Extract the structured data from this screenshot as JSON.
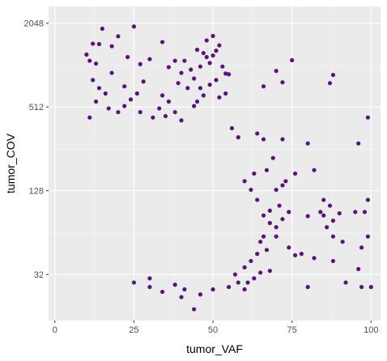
{
  "chart_data": {
    "type": "scatter",
    "xlabel": "tumor_VAF",
    "ylabel": "tumor_COV",
    "xlim": [
      -2,
      103
    ],
    "ylim_log2": [
      3.9,
      11.4
    ],
    "y_scale": "log2",
    "grid": true,
    "legend": "none",
    "xticks": [
      0,
      25,
      50,
      75,
      100
    ],
    "xtick_labels": [
      "0",
      "25",
      "50",
      "75",
      "100"
    ],
    "yticks": [
      32,
      128,
      512,
      2048
    ],
    "ytick_labels": [
      "32",
      "128",
      "512",
      "2048"
    ],
    "colors": {
      "panel": "#ebebeb",
      "grid_major": "#ffffff",
      "point": "#5a137a"
    },
    "points": [
      [
        25,
        1940
      ],
      [
        15,
        1870
      ],
      [
        14,
        1450
      ],
      [
        12,
        1460
      ],
      [
        18,
        1400
      ],
      [
        20,
        1650
      ],
      [
        10,
        1220
      ],
      [
        11,
        1100
      ],
      [
        13,
        1050
      ],
      [
        23,
        1170
      ],
      [
        27,
        1040
      ],
      [
        30,
        1130
      ],
      [
        34,
        1500
      ],
      [
        36,
        990
      ],
      [
        38,
        1100
      ],
      [
        40,
        900
      ],
      [
        41,
        1100
      ],
      [
        45,
        1320
      ],
      [
        46,
        1000
      ],
      [
        47,
        1250
      ],
      [
        48,
        1170
      ],
      [
        49,
        1060
      ],
      [
        50,
        1200
      ],
      [
        51,
        1300
      ],
      [
        44,
        820
      ],
      [
        43,
        950
      ],
      [
        42,
        700
      ],
      [
        39,
        760
      ],
      [
        48,
        1540
      ],
      [
        50,
        1660
      ],
      [
        52,
        1420
      ],
      [
        53,
        1000
      ],
      [
        54,
        890
      ],
      [
        55,
        880
      ],
      [
        51,
        800
      ],
      [
        49,
        740
      ],
      [
        46,
        700
      ],
      [
        52,
        600
      ],
      [
        54,
        640
      ],
      [
        47,
        620
      ],
      [
        45,
        560
      ],
      [
        44,
        520
      ],
      [
        36,
        560
      ],
      [
        34,
        620
      ],
      [
        33,
        500
      ],
      [
        35,
        440
      ],
      [
        38,
        470
      ],
      [
        40,
        410
      ],
      [
        28,
        780
      ],
      [
        26,
        640
      ],
      [
        22,
        520
      ],
      [
        20,
        470
      ],
      [
        17,
        500
      ],
      [
        16,
        640
      ],
      [
        14,
        700
      ],
      [
        12,
        800
      ],
      [
        11,
        430
      ],
      [
        13,
        560
      ],
      [
        18,
        900
      ],
      [
        22,
        720
      ],
      [
        24,
        580
      ],
      [
        27,
        470
      ],
      [
        31,
        430
      ],
      [
        75,
        1110
      ],
      [
        70,
        930
      ],
      [
        66,
        720
      ],
      [
        72,
        770
      ],
      [
        88,
        870
      ],
      [
        87,
        760
      ],
      [
        99,
        430
      ],
      [
        96,
        280
      ],
      [
        99,
        110
      ],
      [
        97,
        50
      ],
      [
        98,
        90
      ],
      [
        95,
        90
      ],
      [
        90,
        88
      ],
      [
        88,
        78
      ],
      [
        86,
        70
      ],
      [
        85,
        85
      ],
      [
        88,
        60
      ],
      [
        91,
        55
      ],
      [
        99,
        60
      ],
      [
        96,
        35
      ],
      [
        97,
        26
      ],
      [
        100,
        26
      ],
      [
        92,
        28
      ],
      [
        88,
        40
      ],
      [
        82,
        42
      ],
      [
        78,
        45
      ],
      [
        80,
        84
      ],
      [
        84,
        90
      ],
      [
        87,
        100
      ],
      [
        85,
        110
      ],
      [
        80,
        280
      ],
      [
        82,
        180
      ],
      [
        76,
        170
      ],
      [
        73,
        150
      ],
      [
        72,
        140
      ],
      [
        70,
        130
      ],
      [
        71,
        100
      ],
      [
        74,
        90
      ],
      [
        72,
        80
      ],
      [
        70,
        70
      ],
      [
        68,
        75
      ],
      [
        66,
        60
      ],
      [
        65,
        55
      ],
      [
        67,
        48
      ],
      [
        70,
        60
      ],
      [
        74,
        50
      ],
      [
        76,
        44
      ],
      [
        80,
        26
      ],
      [
        68,
        34
      ],
      [
        65,
        33
      ],
      [
        63,
        30
      ],
      [
        61,
        28
      ],
      [
        60,
        36
      ],
      [
        62,
        40
      ],
      [
        64,
        45
      ],
      [
        66,
        85
      ],
      [
        68,
        92
      ],
      [
        64,
        110
      ],
      [
        62,
        130
      ],
      [
        60,
        150
      ],
      [
        63,
        170
      ],
      [
        67,
        180
      ],
      [
        69,
        220
      ],
      [
        72,
        300
      ],
      [
        66,
        300
      ],
      [
        64,
        330
      ],
      [
        56,
        360
      ],
      [
        58,
        310
      ],
      [
        44,
        18
      ],
      [
        40,
        22
      ],
      [
        41,
        25
      ],
      [
        46,
        23
      ],
      [
        38,
        27
      ],
      [
        30,
        30
      ],
      [
        50,
        25
      ],
      [
        55,
        26
      ],
      [
        58,
        28
      ],
      [
        60,
        25
      ],
      [
        57,
        32
      ],
      [
        34,
        24
      ],
      [
        30,
        26
      ],
      [
        25,
        28
      ]
    ]
  }
}
